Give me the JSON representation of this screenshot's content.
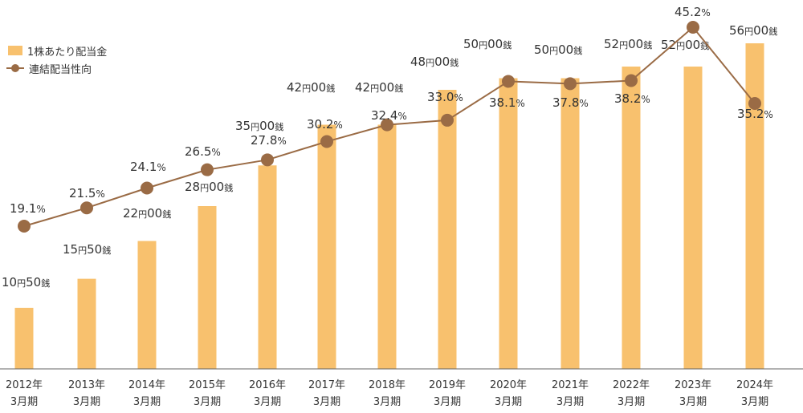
{
  "chart_data": {
    "type": "bar",
    "categories": [
      "2012年3月期",
      "2013年3月期",
      "2014年3月期",
      "2015年3月期",
      "2016年3月期",
      "2017年3月期",
      "2018年3月期",
      "2019年3月期",
      "2020年3月期",
      "2021年3月期",
      "2022年3月期",
      "2023年3月期",
      "2024年3月期"
    ],
    "category_lines": [
      [
        "2012年",
        "3月期"
      ],
      [
        "2013年",
        "3月期"
      ],
      [
        "2014年",
        "3月期"
      ],
      [
        "2015年",
        "3月期"
      ],
      [
        "2016年",
        "3月期"
      ],
      [
        "2017年",
        "3月期"
      ],
      [
        "2018年",
        "3月期"
      ],
      [
        "2019年",
        "3月期"
      ],
      [
        "2020年",
        "3月期"
      ],
      [
        "2021年",
        "3月期"
      ],
      [
        "2022年",
        "3月期"
      ],
      [
        "2023年",
        "3月期"
      ],
      [
        "2024年",
        "3月期"
      ]
    ],
    "series": [
      {
        "name": "1株あたり配当金",
        "type": "bar",
        "values": [
          10.5,
          15.5,
          22.0,
          28.0,
          35.0,
          42.0,
          42.0,
          48.0,
          50.0,
          50.0,
          52.0,
          52.0,
          56.0
        ],
        "labels": [
          [
            "10",
            "円",
            "50",
            "銭"
          ],
          [
            "15",
            "円",
            "50",
            "銭"
          ],
          [
            "22",
            "円",
            "00",
            "銭"
          ],
          [
            "28",
            "円",
            "00",
            "銭"
          ],
          [
            "35",
            "円",
            "00",
            "銭"
          ],
          [
            "42",
            "円",
            "00",
            "銭"
          ],
          [
            "42",
            "円",
            "00",
            "銭"
          ],
          [
            "48",
            "円",
            "00",
            "銭"
          ],
          [
            "50",
            "円",
            "00",
            "銭"
          ],
          [
            "50",
            "円",
            "00",
            "銭"
          ],
          [
            "52",
            "円",
            "00",
            "銭"
          ],
          [
            "52",
            "円",
            "00",
            "銭"
          ],
          [
            "56",
            "円",
            "00",
            "銭"
          ]
        ],
        "color": "#F8C16E"
      },
      {
        "name": "連結配当性向",
        "type": "line",
        "values": [
          19.1,
          21.5,
          24.1,
          26.5,
          27.8,
          30.2,
          32.4,
          33.0,
          38.1,
          37.8,
          38.2,
          45.2,
          35.2
        ],
        "labels": [
          [
            "19.1",
            "%"
          ],
          [
            "21.5",
            "%"
          ],
          [
            "24.1",
            "%"
          ],
          [
            "26.5",
            "%"
          ],
          [
            "27.8",
            "%"
          ],
          [
            "30.2",
            "%"
          ],
          [
            "32.4",
            "%"
          ],
          [
            "33.0",
            "%"
          ],
          [
            "38.1",
            "%"
          ],
          [
            "37.8",
            "%"
          ],
          [
            "38.2",
            "%"
          ],
          [
            "45.2",
            "%"
          ],
          [
            "35.2",
            "%"
          ]
        ],
        "color": "#9A6B45"
      }
    ],
    "legend_position": "top-left",
    "grid": false,
    "axis_color": "#666666",
    "label_color": "#333333"
  }
}
